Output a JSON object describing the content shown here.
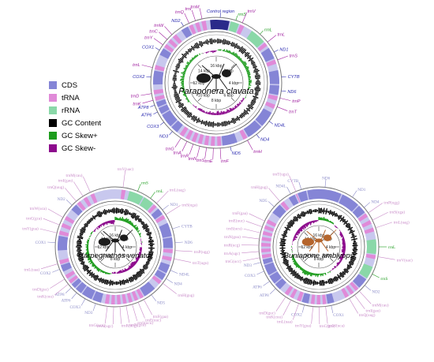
{
  "legend": [
    {
      "label": "CDS",
      "color": "#8585d6"
    },
    {
      "label": "tRNA",
      "color": "#e08ad8"
    },
    {
      "label": "rRNA",
      "color": "#8ad8a8"
    },
    {
      "label": "GC Content",
      "color": "#000000"
    },
    {
      "label": "GC Skew+",
      "color": "#1c9c1c"
    },
    {
      "label": "GC Skew-",
      "color": "#8c0a8c"
    }
  ],
  "genomes": [
    {
      "species": "Paraponera clavata",
      "ticks": [
        "16 kbp",
        "2 kbp",
        "4 kbp",
        "6 kbp",
        "8 kbp",
        "10 kbp",
        "12 kbp",
        "14 kbp"
      ],
      "labels": [
        "Control region",
        "rrnS",
        "trnV",
        "rrnL",
        "trnL",
        "ND1",
        "trnS",
        "CYTB",
        "ND6",
        "trnP",
        "trnT",
        "ND4L",
        "ND4",
        "trnH",
        "ND5",
        "trnF",
        "trnE",
        "trnS",
        "trnN",
        "trnR",
        "trnA",
        "trnG",
        "ND3",
        "COX3",
        "ATP6",
        "ATP8",
        "trnK",
        "trnD",
        "COX2",
        "trnL",
        "COX1",
        "trnY",
        "trnC",
        "trnW",
        "ND2",
        "trnQ",
        "trnI",
        "trnM"
      ]
    },
    {
      "species": "Harpegnathos venator",
      "ticks": [
        "16 kbp",
        "2 kbp",
        "4 kbp",
        "6 kbp",
        "8 kbp",
        "10 kbp",
        "12 kbp",
        "14 kbp"
      ],
      "labels": [
        "rrnS",
        "rrnL",
        "trnL(uag)",
        "ND1",
        "trnS(uga)",
        "CYTB",
        "ND6",
        "trnP(ugg)",
        "trnT(ugu)",
        "ND4L",
        "ND4",
        "trnH(gug)",
        "ND5",
        "trnF(gaa)",
        "trnE(uuc)",
        "trnS(ucu)",
        "trnN(guu)",
        "trnR(ucg)",
        "trnA(ugc)",
        "trnG(ucc)",
        "ND3",
        "COX3",
        "ATP6",
        "ATP8",
        "trnK(cuu)",
        "trnD(guc)",
        "COX2",
        "trnL(uaa)",
        "COX1",
        "trnY(gua)",
        "trnC(gca)",
        "trnW(uca)",
        "ND2",
        "trnQ(uug)",
        "trnI(gau)",
        "trnM(cau)",
        "trnV(uac)"
      ]
    },
    {
      "species": "Buniapone amblyops",
      "ticks": [
        "16 kbp",
        "2 kbp",
        "4 kbp",
        "6 kbp",
        "8 kbp",
        "10 kbp",
        "12 kbp",
        "14 kbp"
      ],
      "labels": [
        "CYTB",
        "ND6",
        "ND1",
        "ND4",
        "trnP(ugg)",
        "trnS(uga)",
        "trnL(uag)",
        "rrnL",
        "trnV(uac)",
        "rrnS",
        "ND2",
        "trnM(cau)",
        "trnI(gau)",
        "trnQ(uug)",
        "COX1",
        "trnW(uca)",
        "trnC(gca)",
        "trnY(gua)",
        "COX2",
        "trnL(uaa)",
        "trnK(cuu)",
        "trnD(guc)",
        "ATP8",
        "ATP6",
        "COX3",
        "ND3",
        "trnG(ucc)",
        "trnA(ugc)",
        "trnR(ucg)",
        "trnN(guu)",
        "trnS(ucu)",
        "trnE(uuc)",
        "trnF(gaa)",
        "ND5",
        "trnH(gug)",
        "ND4L",
        "trnT(ugu)"
      ]
    }
  ]
}
